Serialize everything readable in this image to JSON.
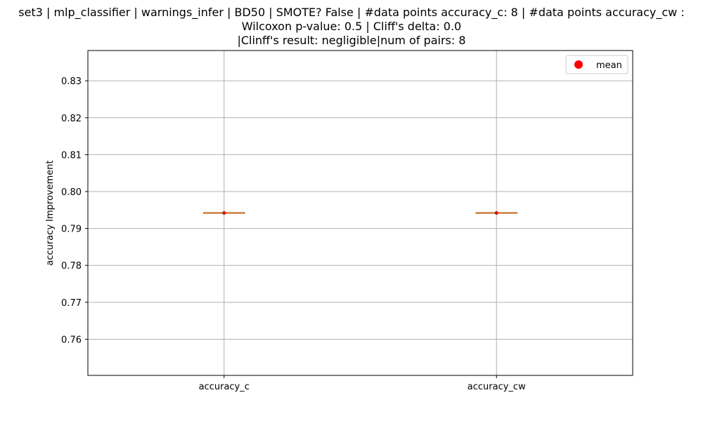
{
  "chart_data": {
    "type": "box",
    "title": [
      "set3 | mlp_classifier | warnings_infer | BD50 | SMOTE? False | #data points accuracy_c: 8 | #data points accuracy_cw :",
      "Wilcoxon p-value: 0.5 | Cliff's delta: 0.0",
      "|Clinff's result: negligible|num of pairs: 8"
    ],
    "xlabel": "",
    "ylabel": "accuracy Improvement",
    "categories": [
      "accuracy_c",
      "accuracy_cw"
    ],
    "ylim": [
      0.7502,
      0.8382
    ],
    "yticks": [
      0.76,
      0.77,
      0.78,
      0.79,
      0.8,
      0.81,
      0.82,
      0.83
    ],
    "ytick_labels": [
      "0.76",
      "0.77",
      "0.78",
      "0.79",
      "0.80",
      "0.81",
      "0.82",
      "0.83"
    ],
    "grid": true,
    "legend": {
      "placement": "top-right",
      "entries": [
        {
          "label": "mean",
          "marker": "circle",
          "color": "#ff0000"
        }
      ]
    },
    "boxes": [
      {
        "category": "accuracy_c",
        "whisker_low": 0.7942,
        "q1": 0.7942,
        "median": 0.7942,
        "q3": 0.7942,
        "whisker_high": 0.7942,
        "mean": 0.7942
      },
      {
        "category": "accuracy_cw",
        "whisker_low": 0.7942,
        "q1": 0.7942,
        "median": 0.7942,
        "q3": 0.7942,
        "whisker_high": 0.7942,
        "mean": 0.7942
      }
    ],
    "colors": {
      "median": "#ff7f0e",
      "mean": "#ff0000",
      "grid": "#b0b0b0",
      "axes": "#000000"
    }
  }
}
